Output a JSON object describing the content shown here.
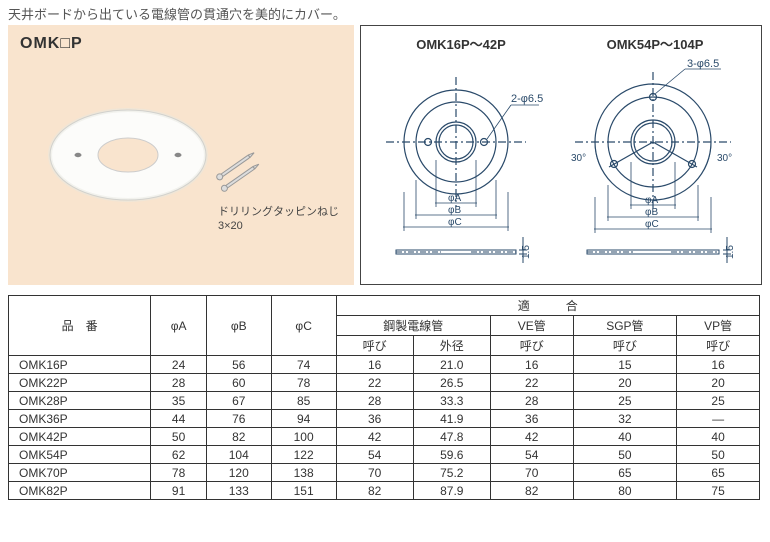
{
  "description": "天井ボードから出ている電線管の貫通穴を美的にカバー。",
  "productCode": "OMK□P",
  "screwNote1": "ドリリングタッピンねじ",
  "screwNote2": "3×20",
  "diagrams": {
    "left": {
      "title": "OMK16P～42P",
      "holeLabel": "2-φ6.5",
      "phiA": "φA",
      "phiB": "φB",
      "phiC": "φC",
      "thick": "1.5"
    },
    "right": {
      "title": "OMK54P～104P",
      "holeLabel": "3-φ6.5",
      "angle1": "30°",
      "angle2": "30°",
      "phiA": "φA",
      "phiB": "φB",
      "phiC": "φC",
      "thick": "1.5"
    }
  },
  "table": {
    "columns": {
      "model": "品　番",
      "phiA": "φA",
      "phiB": "φB",
      "phiC": "φC",
      "fitGroup": "適　　　合",
      "steel": "鋼製電線管",
      "ve": "VE管",
      "sgp": "SGP管",
      "vp": "VP管",
      "nominal": "呼び",
      "od": "外径"
    },
    "rows": [
      {
        "model": "OMK16P",
        "a": "24",
        "b": "56",
        "c": "74",
        "sn": "16",
        "so": "21.0",
        "ve": "16",
        "sgp": "15",
        "vp": "16"
      },
      {
        "model": "OMK22P",
        "a": "28",
        "b": "60",
        "c": "78",
        "sn": "22",
        "so": "26.5",
        "ve": "22",
        "sgp": "20",
        "vp": "20"
      },
      {
        "model": "OMK28P",
        "a": "35",
        "b": "67",
        "c": "85",
        "sn": "28",
        "so": "33.3",
        "ve": "28",
        "sgp": "25",
        "vp": "25"
      },
      {
        "model": "OMK36P",
        "a": "44",
        "b": "76",
        "c": "94",
        "sn": "36",
        "so": "41.9",
        "ve": "36",
        "sgp": "32",
        "vp": "—"
      },
      {
        "model": "OMK42P",
        "a": "50",
        "b": "82",
        "c": "100",
        "sn": "42",
        "so": "47.8",
        "ve": "42",
        "sgp": "40",
        "vp": "40"
      },
      {
        "model": "OMK54P",
        "a": "62",
        "b": "104",
        "c": "122",
        "sn": "54",
        "so": "59.6",
        "ve": "54",
        "sgp": "50",
        "vp": "50"
      },
      {
        "model": "OMK70P",
        "a": "78",
        "b": "120",
        "c": "138",
        "sn": "70",
        "so": "75.2",
        "ve": "70",
        "sgp": "65",
        "vp": "65"
      },
      {
        "model": "OMK82P",
        "a": "91",
        "b": "133",
        "c": "151",
        "sn": "82",
        "so": "87.9",
        "ve": "82",
        "sgp": "80",
        "vp": "75"
      }
    ]
  },
  "colors": {
    "panelBg": "#f9e4ce",
    "border": "#333333",
    "text": "#333333",
    "diagStroke": "#224466"
  }
}
